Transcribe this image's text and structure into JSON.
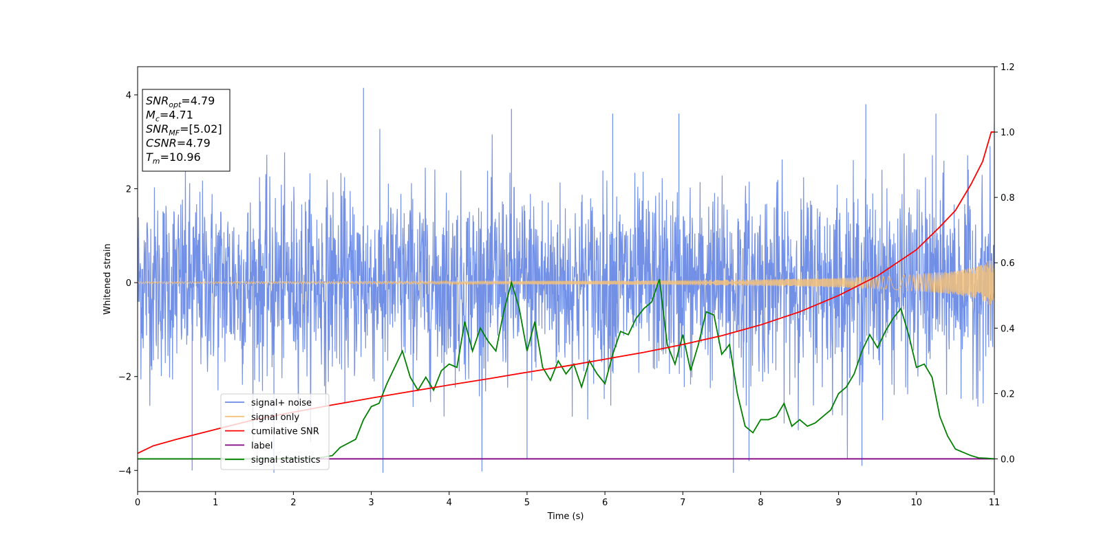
{
  "chart_data": {
    "type": "line",
    "xlabel": "Time (s)",
    "ylabel": "Whitened strain",
    "xlim": [
      0,
      11
    ],
    "ylim_left": [
      -4.45,
      4.6
    ],
    "ylim_right": [
      -0.1,
      1.2
    ],
    "x_ticks": [
      "0",
      "1",
      "2",
      "3",
      "4",
      "5",
      "6",
      "7",
      "8",
      "9",
      "10",
      "11"
    ],
    "y_ticks_left": [
      "−4",
      "−2",
      "0",
      "2",
      "4"
    ],
    "y_ticks_right": [
      "0.0",
      "0.2",
      "0.4",
      "0.6",
      "0.8",
      "1.0",
      "1.2"
    ],
    "stats": [
      {
        "sym": "SNR",
        "sub": "opt",
        "rest": "=4.79"
      },
      {
        "sym": "M",
        "sub": "c",
        "rest": "=4.71"
      },
      {
        "sym": "SNR",
        "sub": "MF",
        "rest": "=[5.02]"
      },
      {
        "sym": "CSNR",
        "sub": "",
        "rest": "=4.79"
      },
      {
        "sym": "T",
        "sub": "m",
        "rest": "=10.96"
      }
    ],
    "legend": {
      "placement": "lower-left",
      "entries": [
        {
          "label": "signal+ noise",
          "color": "#6b8ae6"
        },
        {
          "label": "signal only",
          "color": "#f5c27a"
        },
        {
          "label": "cumilative SNR",
          "color": "#ff0000"
        },
        {
          "label": "label",
          "color": "#800080"
        },
        {
          "label": "signal statistics",
          "color": "#008000"
        }
      ]
    },
    "series": [
      {
        "name": "signal+ noise",
        "axis": "left",
        "description_kind": "noise",
        "sigma": 1.0,
        "spikes": [
          [
            0.7,
            -4.0
          ],
          [
            1.75,
            -4.05
          ],
          [
            2.9,
            4.15
          ],
          [
            3.15,
            -4.05
          ],
          [
            4.8,
            3.7
          ],
          [
            5.0,
            -3.75
          ],
          [
            6.1,
            3.6
          ],
          [
            6.95,
            3.6
          ],
          [
            7.65,
            -4.05
          ],
          [
            7.85,
            -3.8
          ],
          [
            9.3,
            -3.9
          ],
          [
            9.35,
            3.8
          ],
          [
            10.25,
            3.6
          ],
          [
            11.0,
            3.4
          ]
        ]
      },
      {
        "name": "signal only",
        "axis": "left",
        "envelope": [
          [
            0,
            0.02
          ],
          [
            2,
            0.025
          ],
          [
            4,
            0.03
          ],
          [
            6,
            0.04
          ],
          [
            7,
            0.05
          ],
          [
            8,
            0.07
          ],
          [
            9,
            0.1
          ],
          [
            9.5,
            0.13
          ],
          [
            10,
            0.18
          ],
          [
            10.5,
            0.25
          ],
          [
            10.8,
            0.35
          ],
          [
            10.96,
            0.5
          ],
          [
            11.0,
            0.3
          ]
        ]
      },
      {
        "name": "cumilative SNR",
        "axis": "right",
        "x": [
          0,
          0.2,
          0.5,
          1,
          1.5,
          2,
          2.5,
          3,
          3.5,
          4,
          4.5,
          5,
          5.5,
          6,
          6.5,
          7,
          7.5,
          8,
          8.5,
          9,
          9.5,
          10,
          10.3,
          10.5,
          10.7,
          10.85,
          10.96,
          11.0
        ],
        "y": [
          0.017,
          0.04,
          0.06,
          0.09,
          0.12,
          0.143,
          0.165,
          0.186,
          0.206,
          0.226,
          0.245,
          0.265,
          0.284,
          0.305,
          0.326,
          0.35,
          0.377,
          0.41,
          0.45,
          0.5,
          0.56,
          0.64,
          0.71,
          0.76,
          0.84,
          0.91,
          1.0,
          1.0
        ]
      },
      {
        "name": "label",
        "axis": "right",
        "x": [
          0,
          11
        ],
        "y": [
          0.0,
          0.0
        ]
      },
      {
        "name": "signal statistics",
        "axis": "right",
        "x": [
          0,
          0.5,
          1,
          1.5,
          2,
          2.3,
          2.5,
          2.6,
          2.8,
          2.9,
          3.0,
          3.1,
          3.2,
          3.3,
          3.4,
          3.5,
          3.6,
          3.7,
          3.8,
          3.9,
          4.0,
          4.1,
          4.2,
          4.3,
          4.4,
          4.5,
          4.6,
          4.7,
          4.8,
          4.9,
          5.0,
          5.1,
          5.2,
          5.3,
          5.4,
          5.5,
          5.6,
          5.7,
          5.8,
          5.9,
          6.0,
          6.1,
          6.2,
          6.3,
          6.4,
          6.5,
          6.6,
          6.7,
          6.8,
          6.9,
          7.0,
          7.1,
          7.2,
          7.3,
          7.4,
          7.5,
          7.6,
          7.7,
          7.8,
          7.9,
          8.0,
          8.1,
          8.2,
          8.3,
          8.4,
          8.5,
          8.6,
          8.7,
          8.8,
          8.9,
          9.0,
          9.1,
          9.2,
          9.3,
          9.4,
          9.5,
          9.6,
          9.7,
          9.8,
          9.9,
          10.0,
          10.1,
          10.2,
          10.3,
          10.4,
          10.5,
          10.6,
          10.7,
          10.8,
          10.9,
          11.0
        ],
        "y": [
          0.0,
          0.0,
          0.0,
          0.0,
          0.001,
          0.002,
          0.01,
          0.035,
          0.06,
          0.12,
          0.16,
          0.17,
          0.23,
          0.28,
          0.33,
          0.25,
          0.21,
          0.25,
          0.21,
          0.27,
          0.29,
          0.28,
          0.42,
          0.33,
          0.4,
          0.36,
          0.33,
          0.45,
          0.54,
          0.46,
          0.33,
          0.42,
          0.28,
          0.24,
          0.3,
          0.26,
          0.29,
          0.22,
          0.3,
          0.26,
          0.23,
          0.32,
          0.39,
          0.38,
          0.43,
          0.46,
          0.48,
          0.55,
          0.35,
          0.29,
          0.38,
          0.27,
          0.35,
          0.45,
          0.44,
          0.32,
          0.35,
          0.2,
          0.1,
          0.08,
          0.12,
          0.12,
          0.13,
          0.17,
          0.1,
          0.12,
          0.1,
          0.11,
          0.13,
          0.15,
          0.2,
          0.22,
          0.26,
          0.33,
          0.38,
          0.34,
          0.39,
          0.43,
          0.46,
          0.38,
          0.28,
          0.29,
          0.25,
          0.13,
          0.07,
          0.03,
          0.02,
          0.01,
          0.003,
          0.002,
          0.0
        ]
      }
    ]
  }
}
